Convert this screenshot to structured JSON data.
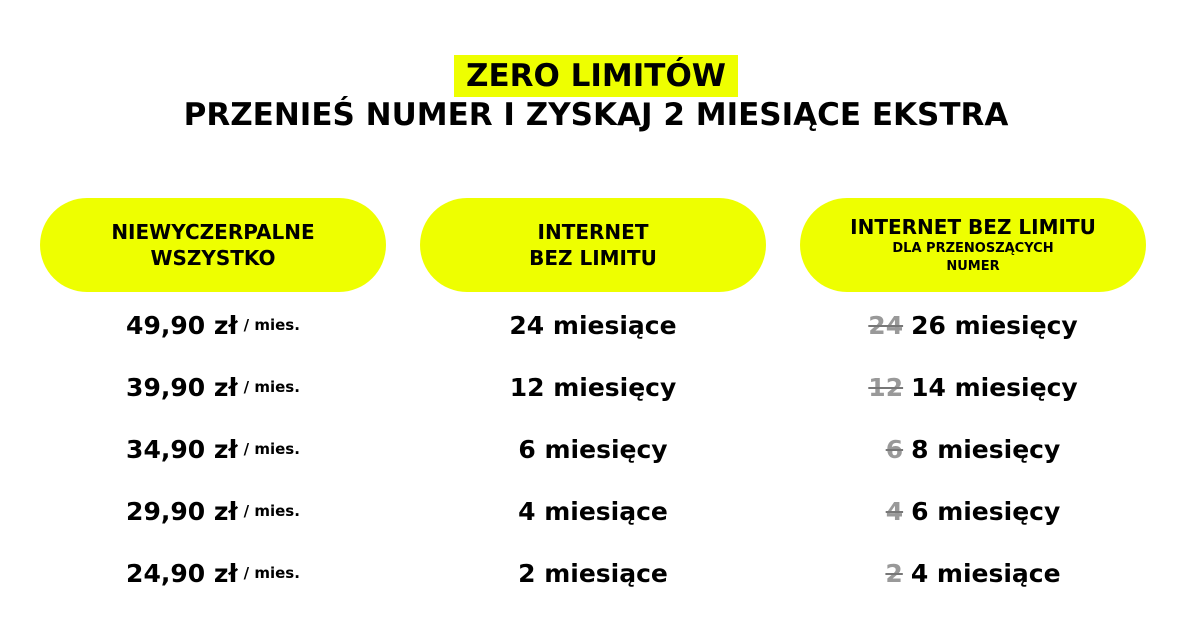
{
  "header": {
    "title": "ZERO LIMITÓW",
    "subtitle": "PRZENIEŚ NUMER I ZYSKAJ 2 MIESIĄCE EKSTRA"
  },
  "accent_color": "#eeff00",
  "columns": [
    {
      "header_lines": [
        "NIEWYCZERPALNE",
        "WSZYSTKO"
      ]
    },
    {
      "header_lines": [
        "INTERNET",
        "BEZ LIMITU"
      ]
    },
    {
      "header_lines": [
        "INTERNET BEZ LIMITU"
      ],
      "header_small_lines": [
        "DLA PRZENOSZĄCYCH",
        "NUMER"
      ]
    }
  ],
  "rows": [
    {
      "price": "49,90 zł",
      "unit": "/ mies.",
      "internet": "24 miesiące",
      "old": "24",
      "new": "26 miesięcy"
    },
    {
      "price": "39,90 zł",
      "unit": "/ mies.",
      "internet": "12 miesięcy",
      "old": "12",
      "new": "14 miesięcy"
    },
    {
      "price": "34,90 zł",
      "unit": "/ mies.",
      "internet": "6 miesięcy",
      "old": "6",
      "new": "8 miesięcy"
    },
    {
      "price": "29,90 zł",
      "unit": "/ mies.",
      "internet": "4 miesiące",
      "old": "4",
      "new": "6 miesięcy"
    },
    {
      "price": "24,90 zł",
      "unit": "/ mies.",
      "internet": "2 miesiące",
      "old": "2",
      "new": "4 miesiące"
    }
  ]
}
